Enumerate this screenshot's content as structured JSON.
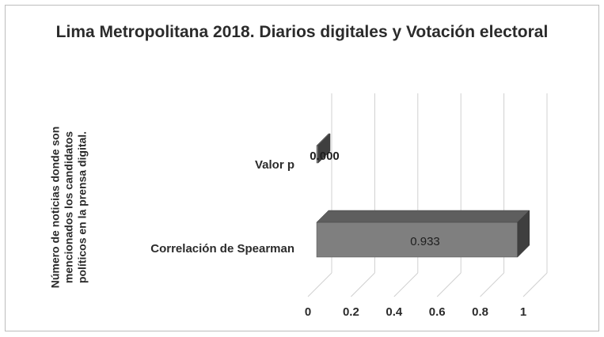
{
  "chart_data": {
    "type": "bar",
    "orientation": "horizontal",
    "style": "3d",
    "title": "Lima Metropolitana 2018. Diarios digitales y Votación electoral",
    "ylabel": "Número de noticias donde son mencionados los candidatos políticos en la prensa digital.",
    "xlabel": "",
    "categories": [
      "Valor p",
      "Correlación de Spearman"
    ],
    "values": [
      0.0,
      0.933
    ],
    "value_labels": [
      "0.000",
      "0.933"
    ],
    "xlim": [
      0,
      1
    ],
    "xticks": [
      "0",
      "0.2",
      "0.4",
      "0.6",
      "0.8",
      "1"
    ],
    "grid": true,
    "legend": "none",
    "colors": {
      "bar_front": "#7f7f7f",
      "bar_top": "#5e5e5e",
      "bar_side": "#3f3f3f",
      "grid": "#d0d0d0",
      "text": "#2b2b2b"
    }
  }
}
